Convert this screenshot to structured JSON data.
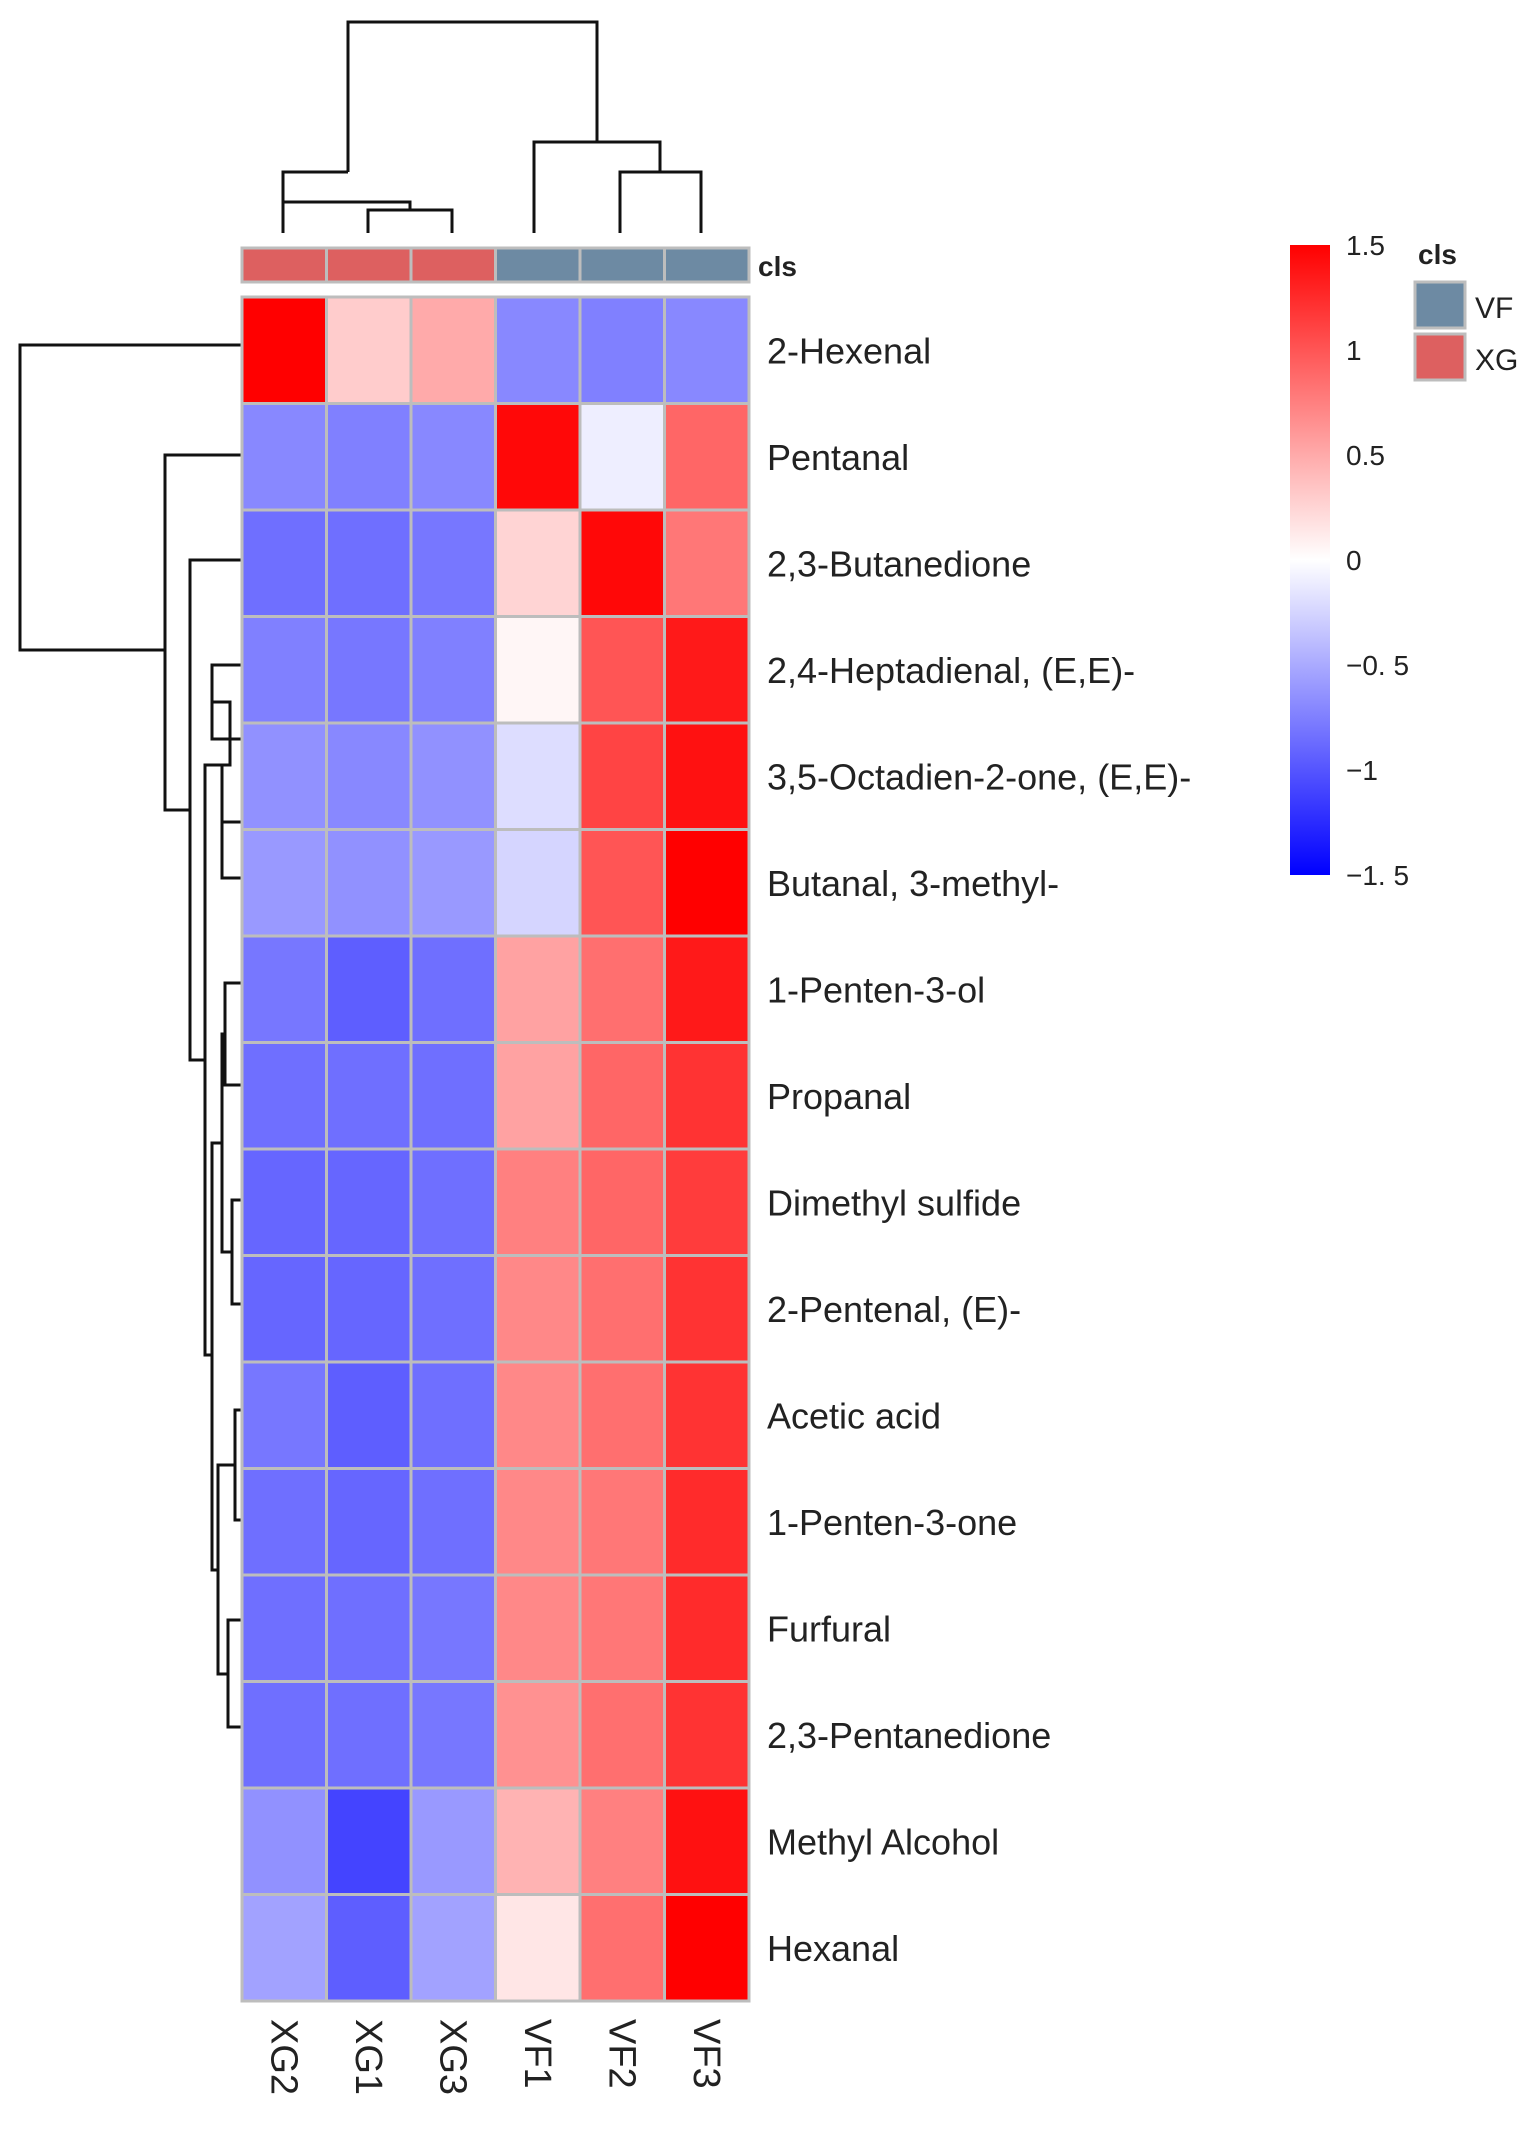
{
  "chart_data": {
    "type": "heatmap",
    "title": "",
    "columns": [
      "XG2",
      "XG1",
      "XG3",
      "VF1",
      "VF2",
      "VF3"
    ],
    "column_groups": [
      "XG",
      "XG",
      "XG",
      "VF",
      "VF",
      "VF"
    ],
    "annotation_title": "cls",
    "rows": [
      "2-Hexenal",
      "Pentanal",
      "2,3-Butanedione",
      "2,4-Heptadienal, (E,E)-",
      "3,5-Octadien-2-one, (E,E)-",
      "Butanal, 3-methyl-",
      "1-Penten-3-ol",
      "Propanal",
      "Dimethyl sulfide",
      "2-Pentenal, (E)-",
      "Acetic acid",
      "1-Penten-3-one",
      "Furfural",
      "2,3-Pentanedione",
      "Methyl Alcohol",
      "Hexanal"
    ],
    "values": [
      [
        1.5,
        0.3,
        0.5,
        -0.7,
        -0.75,
        -0.7
      ],
      [
        -0.7,
        -0.75,
        -0.7,
        1.45,
        -0.1,
        0.9
      ],
      [
        -0.85,
        -0.85,
        -0.8,
        0.25,
        1.45,
        0.8
      ],
      [
        -0.75,
        -0.8,
        -0.75,
        0.05,
        1.0,
        1.35
      ],
      [
        -0.65,
        -0.7,
        -0.65,
        -0.2,
        1.1,
        1.4
      ],
      [
        -0.6,
        -0.65,
        -0.6,
        -0.25,
        1.0,
        1.5
      ],
      [
        -0.8,
        -0.95,
        -0.85,
        0.55,
        0.85,
        1.35
      ],
      [
        -0.85,
        -0.85,
        -0.85,
        0.55,
        0.9,
        1.2
      ],
      [
        -0.9,
        -0.9,
        -0.85,
        0.75,
        0.9,
        1.15
      ],
      [
        -0.9,
        -0.9,
        -0.85,
        0.7,
        0.85,
        1.2
      ],
      [
        -0.8,
        -0.95,
        -0.85,
        0.7,
        0.85,
        1.2
      ],
      [
        -0.85,
        -0.9,
        -0.85,
        0.7,
        0.8,
        1.25
      ],
      [
        -0.85,
        -0.85,
        -0.8,
        0.7,
        0.8,
        1.25
      ],
      [
        -0.85,
        -0.85,
        -0.8,
        0.65,
        0.85,
        1.2
      ],
      [
        -0.65,
        -1.1,
        -0.6,
        0.45,
        0.75,
        1.4
      ],
      [
        -0.55,
        -0.95,
        -0.55,
        0.15,
        0.85,
        1.5
      ]
    ],
    "color_scale": {
      "min": -1.5,
      "max": 1.5,
      "low_color": "#0000ff",
      "mid_color": "#ffffff",
      "high_color": "#ff0000",
      "ticks": [
        1.5,
        1,
        0.5,
        0,
        -0.5,
        -1,
        -1.5
      ],
      "tick_labels": [
        "1.5",
        "1",
        "0.5",
        "0",
        "−0. 5",
        "−1",
        "−1. 5"
      ]
    },
    "legend": {
      "title": "cls",
      "entries": [
        {
          "label": "VF",
          "color": "#6d8aa3"
        },
        {
          "label": "XG",
          "color": "#dd6060"
        }
      ],
      "placement": "top-right"
    },
    "column_dendrogram": "((XG2,(XG1,XG3)),(VF1,(VF2,VF3)))",
    "row_dendrogram": "(2-Hexenal,(Pentanal,(2,3-Butanedione,(((2,4-Heptadienal,(3,5-Octadien-2-one,Butanal 3-methyl)),...),...))))"
  }
}
